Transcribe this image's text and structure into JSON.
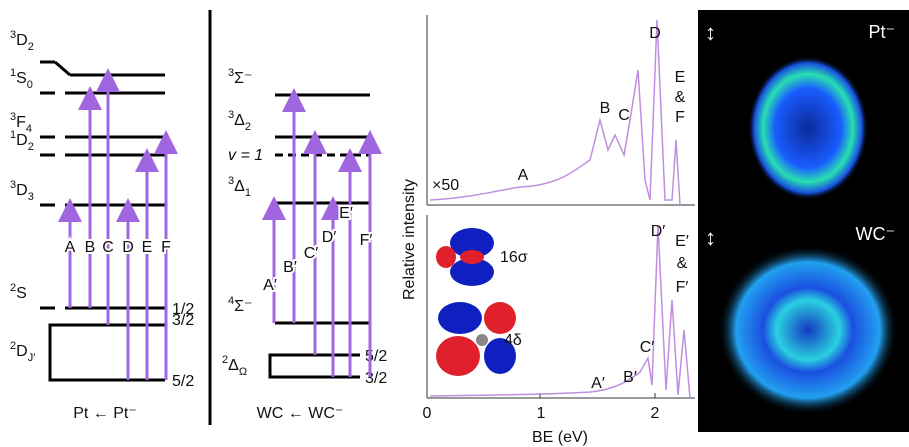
{
  "pt_diagram": {
    "levels": [
      {
        "sup": "3",
        "term": "D",
        "sub": "2"
      },
      {
        "sup": "1",
        "term": "S",
        "sub": "0"
      },
      {
        "sup": "3",
        "term": "F",
        "sub": "4"
      },
      {
        "sup": "1",
        "term": "D",
        "sub": "2"
      },
      {
        "sup": "3",
        "term": "D",
        "sub": "3"
      },
      {
        "sup": "2",
        "term": "S",
        "j": "1/2"
      },
      {
        "sup": "2",
        "term": "D",
        "sub": "J′",
        "sublevels": [
          "3/2",
          "5/2"
        ]
      }
    ],
    "transitions": [
      "A",
      "B",
      "C",
      "D",
      "E",
      "F"
    ],
    "caption": "Pt ← Pt⁻"
  },
  "wc_diagram": {
    "levels": [
      {
        "sup": "3",
        "term": "Σ⁻"
      },
      {
        "sup": "3",
        "term": "Δ",
        "sub": "2"
      },
      {
        "text": "v = 1"
      },
      {
        "sup": "3",
        "term": "Δ",
        "sub": "1"
      },
      {
        "sup": "4",
        "term": "Σ⁻"
      },
      {
        "sup": "2",
        "term": "Δ",
        "sub": "Ω",
        "sublevels": [
          "5/2",
          "3/2"
        ]
      }
    ],
    "transitions": [
      "A′",
      "B′",
      "C′",
      "D′",
      "E′",
      "F′"
    ],
    "caption": "WC ← WC⁻"
  },
  "spectra": {
    "y_label": "Relative intensity",
    "x_label": "BE (eV)",
    "xticks": [
      0,
      1,
      2
    ],
    "top": {
      "scale": "×50",
      "peaks": [
        "A",
        "B",
        "C",
        "D",
        "E",
        "&",
        "F"
      ]
    },
    "bottom": {
      "peaks": [
        "A′",
        "B′",
        "C′",
        "D′",
        "E′",
        "&",
        "F′"
      ],
      "orbitals": [
        "16σ",
        "4δ"
      ]
    }
  },
  "images": {
    "labels": [
      "Pt⁻",
      "WC⁻"
    ]
  }
}
